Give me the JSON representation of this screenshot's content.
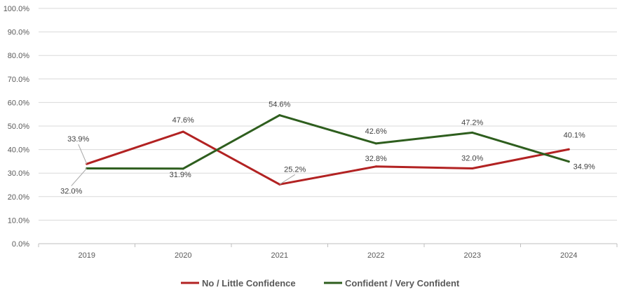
{
  "chart_data": {
    "type": "line",
    "title": "",
    "xlabel": "",
    "ylabel": "",
    "categories": [
      "2019",
      "2020",
      "2021",
      "2022",
      "2023",
      "2024"
    ],
    "ylim": [
      0,
      100
    ],
    "y_ticks": [
      "0.0%",
      "10.0%",
      "20.0%",
      "30.0%",
      "40.0%",
      "50.0%",
      "60.0%",
      "70.0%",
      "80.0%",
      "90.0%",
      "100.0%"
    ],
    "grid": true,
    "legend_position": "bottom",
    "series": [
      {
        "name": "No / Little Confidence",
        "color": "#b22222",
        "values": [
          33.9,
          47.6,
          25.2,
          32.8,
          32.0,
          40.1
        ],
        "labels": [
          "33.9%",
          "47.6%",
          "25.2%",
          "32.8%",
          "32.0%",
          "40.1%"
        ]
      },
      {
        "name": "Confident / Very Confident",
        "color": "#2e5e1e",
        "values": [
          32.0,
          31.9,
          54.6,
          42.6,
          47.2,
          34.9
        ],
        "labels": [
          "32.0%",
          "31.9%",
          "54.6%",
          "42.6%",
          "47.2%",
          "34.9%"
        ]
      }
    ]
  }
}
